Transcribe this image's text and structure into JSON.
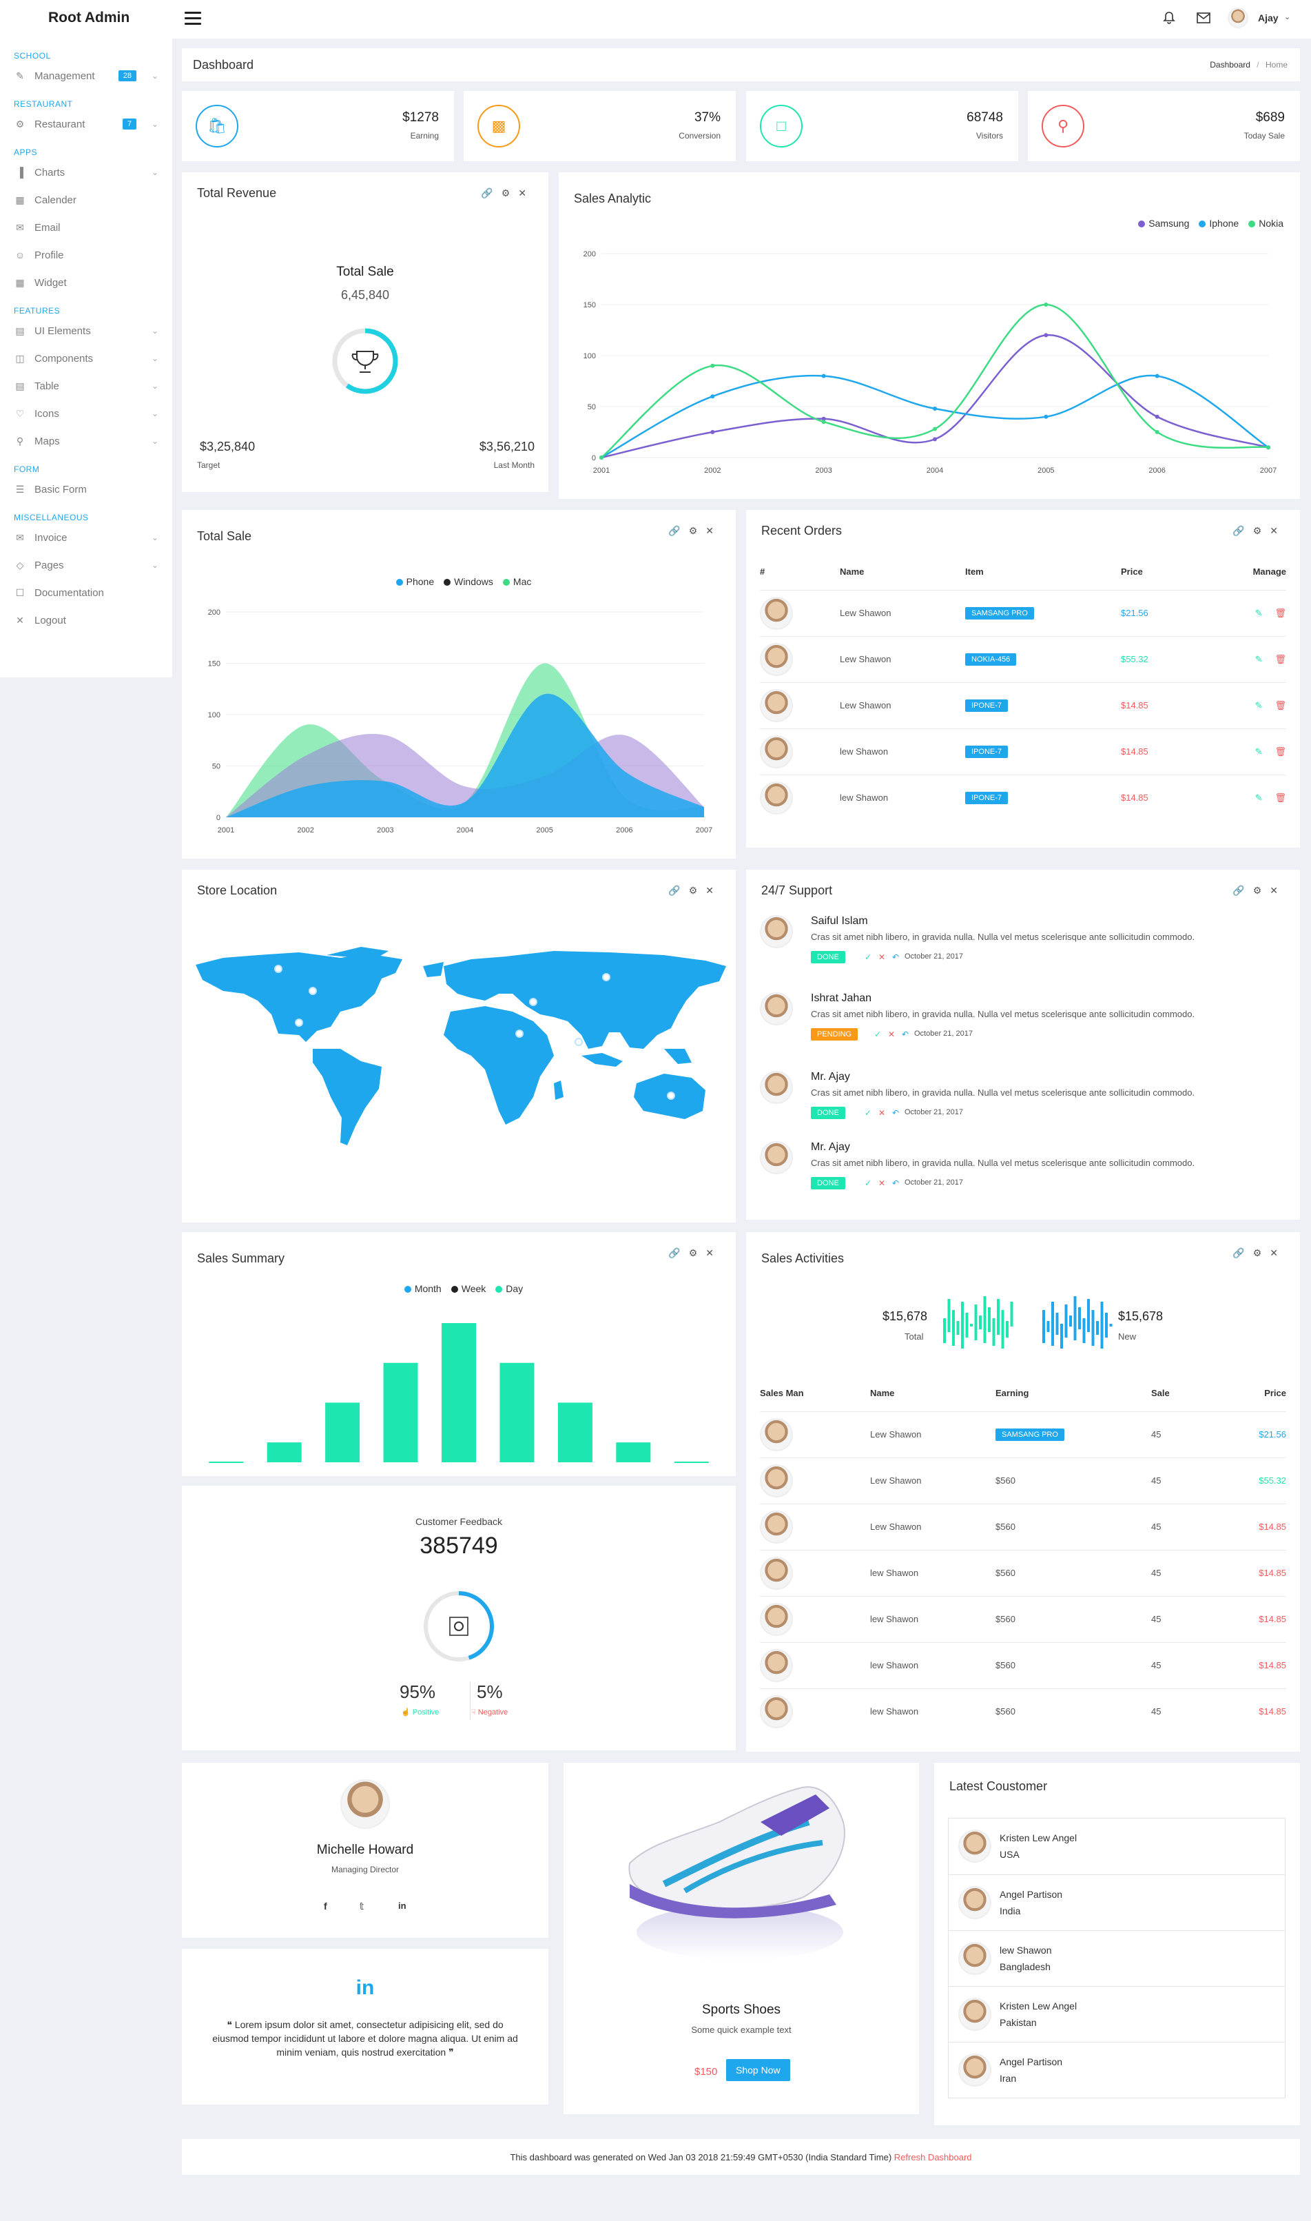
{
  "app": {
    "brand": "Root Admin",
    "user": "Ajay"
  },
  "sidebar": {
    "sections": [
      {
        "label": "SCHOOL",
        "items": [
          {
            "label": "Management",
            "badge": "28",
            "icon": "edit-icon"
          }
        ]
      },
      {
        "label": "RESTAURANT",
        "items": [
          {
            "label": "Restaurant",
            "badge": "7",
            "icon": "trophy-icon"
          }
        ]
      },
      {
        "label": "APPS",
        "items": [
          {
            "label": "Charts",
            "icon": "bar-chart-icon"
          },
          {
            "label": "Calender",
            "icon": "calendar-icon"
          },
          {
            "label": "Email",
            "icon": "mail-icon"
          },
          {
            "label": "Profile",
            "icon": "user-icon"
          },
          {
            "label": "Widget",
            "icon": "grid-icon"
          }
        ]
      },
      {
        "label": "FEATURES",
        "items": [
          {
            "label": "UI Elements",
            "icon": "layout-icon"
          },
          {
            "label": "Components",
            "icon": "layers-icon"
          },
          {
            "label": "Table",
            "icon": "table-icon"
          },
          {
            "label": "Icons",
            "icon": "heart-icon"
          },
          {
            "label": "Maps",
            "icon": "map-icon"
          }
        ]
      },
      {
        "label": "FORM",
        "items": [
          {
            "label": "Basic Form",
            "icon": "list-icon"
          }
        ]
      },
      {
        "label": "MISCELLANEOUS",
        "items": [
          {
            "label": "Invoice",
            "icon": "invoice-icon"
          },
          {
            "label": "Pages",
            "icon": "pages-icon"
          },
          {
            "label": "Documentation",
            "icon": "doc-icon"
          },
          {
            "label": "Logout",
            "icon": "logout-icon"
          }
        ]
      }
    ]
  },
  "page": {
    "title": "Dashboard",
    "breadcrumb": [
      "Dashboard",
      "Home"
    ]
  },
  "stats": [
    {
      "value": "$1278",
      "label": "Earning",
      "color": "#1fa7ee",
      "icon": "bag-icon"
    },
    {
      "value": "37%",
      "label": "Conversion",
      "color": "#f89a18",
      "icon": "chart-icon"
    },
    {
      "value": "68748",
      "label": "Visitors",
      "color": "#1ee6b0",
      "icon": "message-icon"
    },
    {
      "value": "$689",
      "label": "Today Sale",
      "color": "#f25b5b",
      "icon": "location-icon"
    }
  ],
  "total_revenue": {
    "title": "Total Revenue",
    "center_title": "Total Sale",
    "center_value": "6,45,840",
    "left_value": "$3,25,840",
    "left_label": "Target",
    "right_value": "$3,56,210",
    "right_label": "Last Month",
    "progress": 0.6
  },
  "sales_analytic": {
    "title": "Sales Analytic"
  },
  "total_sale": {
    "title": "Total Sale"
  },
  "recent_orders": {
    "title": "Recent Orders",
    "columns": [
      "#",
      "Name",
      "Item",
      "Price",
      "Manage"
    ],
    "rows": [
      {
        "name": "Lew Shawon",
        "item": "SAMSANG PRO",
        "price": "$21.56",
        "price_color": "#1fa7ee"
      },
      {
        "name": "Lew Shawon",
        "item": "NOKIA-456",
        "price": "$55.32",
        "price_color": "#1ee6b0"
      },
      {
        "name": "Lew Shawon",
        "item": "IPONE-7",
        "price": "$14.85",
        "price_color": "#f25b5b"
      },
      {
        "name": "lew Shawon",
        "item": "IPONE-7",
        "price": "$14.85",
        "price_color": "#f25b5b"
      },
      {
        "name": "lew Shawon",
        "item": "IPONE-7",
        "price": "$14.85",
        "price_color": "#f25b5b"
      }
    ]
  },
  "store_location": {
    "title": "Store Location"
  },
  "support": {
    "title": "24/7 Support",
    "items": [
      {
        "name": "Saiful Islam",
        "text": "Cras sit amet nibh libero, in gravida nulla. Nulla vel metus scelerisque ante sollicitudin commodo.",
        "status": "DONE",
        "date": "October 21, 2017"
      },
      {
        "name": "Ishrat Jahan",
        "text": "Cras sit amet nibh libero, in gravida nulla. Nulla vel metus scelerisque ante sollicitudin commodo.",
        "status": "PENDING",
        "date": "October 21, 2017"
      },
      {
        "name": "Mr. Ajay",
        "text": "Cras sit amet nibh libero, in gravida nulla. Nulla vel metus scelerisque ante sollicitudin commodo.",
        "status": "DONE",
        "date": "October 21, 2017"
      },
      {
        "name": "Mr. Ajay",
        "text": "Cras sit amet nibh libero, in gravida nulla. Nulla vel metus scelerisque ante sollicitudin commodo.",
        "status": "DONE",
        "date": "October 21, 2017"
      }
    ]
  },
  "sales_summary": {
    "title": "Sales Summary"
  },
  "customer_feedback": {
    "label": "Customer Feedback",
    "value": "385749",
    "positive": "95%",
    "positive_label": "Positive",
    "negative": "5%",
    "negative_label": "Negative",
    "progress": 0.45
  },
  "sales_activities": {
    "title": "Sales Activities",
    "total_value": "$15,678",
    "total_label": "Total",
    "new_value": "$15,678",
    "new_label": "New",
    "columns": [
      "Sales Man",
      "Name",
      "Earning",
      "Sale",
      "Price"
    ],
    "rows": [
      {
        "name": "Lew Shawon",
        "earning": "SAMSANG PRO",
        "sale": "45",
        "price": "$21.56",
        "price_color": "#1fa7ee"
      },
      {
        "name": "Lew Shawon",
        "earning": "$560",
        "sale": "45",
        "price": "$55.32",
        "price_color": "#1ee6b0"
      },
      {
        "name": "Lew Shawon",
        "earning": "$560",
        "sale": "45",
        "price": "$14.85",
        "price_color": "#f25b5b"
      },
      {
        "name": "lew Shawon",
        "earning": "$560",
        "sale": "45",
        "price": "$14.85",
        "price_color": "#f25b5b"
      },
      {
        "name": "lew Shawon",
        "earning": "$560",
        "sale": "45",
        "price": "$14.85",
        "price_color": "#f25b5b"
      },
      {
        "name": "lew Shawon",
        "earning": "$560",
        "sale": "45",
        "price": "$14.85",
        "price_color": "#f25b5b"
      },
      {
        "name": "lew Shawon",
        "earning": "$560",
        "sale": "45",
        "price": "$14.85",
        "price_color": "#f25b5b"
      }
    ]
  },
  "profile": {
    "name": "Michelle Howard",
    "role": "Managing Director"
  },
  "quote": {
    "text": "Lorem ipsum dolor sit amet, consectetur adipisicing elit, sed do eiusmod tempor incididunt ut labore et dolore magna aliqua. Ut enim ad minim veniam, quis nostrud exercitation"
  },
  "product": {
    "name": "Sports Shoes",
    "desc": "Some quick example text",
    "price": "$150",
    "button": "Shop Now"
  },
  "latest_customer": {
    "title": "Latest Coustomer",
    "items": [
      {
        "name": "Kristen Lew Angel",
        "country": "USA"
      },
      {
        "name": "Angel Partison",
        "country": "India"
      },
      {
        "name": "lew Shawon",
        "country": "Bangladesh"
      },
      {
        "name": "Kristen Lew Angel",
        "country": "Pakistan"
      },
      {
        "name": "Angel Partison",
        "country": "Iran"
      }
    ]
  },
  "footer": {
    "text": "This dashboard was generated on Wed Jan 03 2018 21:59:49 GMT+0530 (India Standard Time)",
    "link": "Refresh Dashboard"
  },
  "chart_data": [
    {
      "type": "line",
      "title": "Sales Analytic",
      "x": [
        "2001",
        "2002",
        "2003",
        "2004",
        "2005",
        "2006",
        "2007"
      ],
      "ylim": [
        0,
        200
      ],
      "yticks": [
        "0",
        "50",
        "100",
        "150",
        "200"
      ],
      "legend": "top-right",
      "series": [
        {
          "name": "Samsung",
          "color": "#7b5fd0",
          "values": [
            0,
            25,
            38,
            18,
            120,
            40,
            10
          ]
        },
        {
          "name": "Iphone",
          "color": "#1fa7ee",
          "values": [
            0,
            60,
            80,
            48,
            40,
            80,
            10
          ]
        },
        {
          "name": "Nokia",
          "color": "#3ddc84",
          "values": [
            0,
            90,
            35,
            28,
            150,
            25,
            10
          ]
        }
      ]
    },
    {
      "type": "area",
      "title": "Total Sale",
      "x": [
        "2001",
        "2002",
        "2003",
        "2004",
        "2005",
        "2006",
        "2007"
      ],
      "ylim": [
        0,
        200
      ],
      "yticks": [
        "0",
        "50",
        "100",
        "150",
        "200"
      ],
      "legend": "top-center",
      "series": [
        {
          "name": "Phone",
          "color": "#1fa7ee",
          "values": [
            0,
            30,
            35,
            15,
            120,
            45,
            10
          ]
        },
        {
          "name": "Windows",
          "color": "#222222",
          "values": [
            0,
            60,
            80,
            30,
            40,
            80,
            10
          ]
        },
        {
          "name": "Mac",
          "color": "#3ddc84",
          "values": [
            0,
            90,
            35,
            15,
            150,
            20,
            10
          ]
        }
      ]
    },
    {
      "type": "bar",
      "title": "Sales Summary",
      "legend": "top-center",
      "series_names": [
        {
          "name": "Month",
          "color": "#1fa7ee"
        },
        {
          "name": "Week",
          "color": "#222222"
        },
        {
          "name": "Day",
          "color": "#1ee6b0"
        }
      ],
      "values": [
        0,
        1,
        3,
        5,
        7,
        5,
        3,
        1,
        0
      ]
    }
  ]
}
